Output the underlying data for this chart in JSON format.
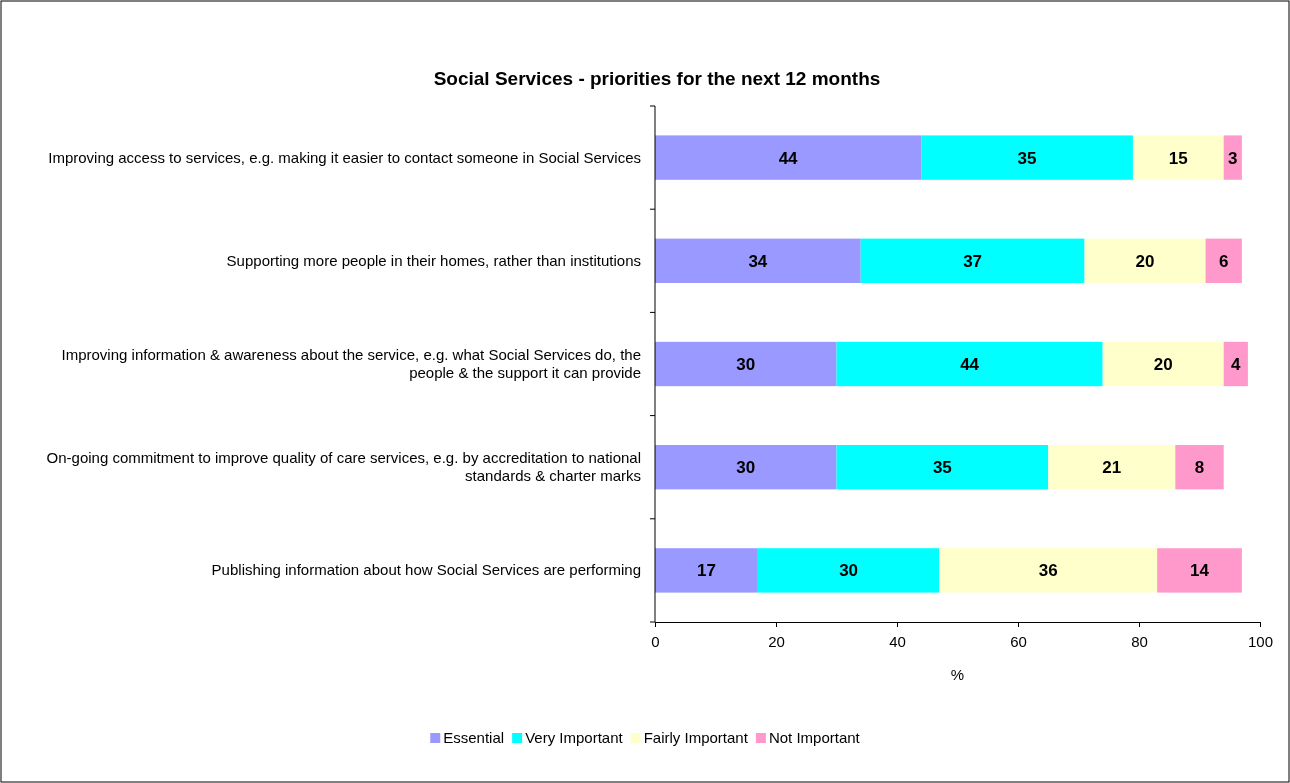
{
  "chart_data": {
    "type": "bar",
    "orientation": "horizontal",
    "stacked": true,
    "title": "Social Services - priorities for the next 12 months",
    "xlabel": "%",
    "categories": [
      "Improving access to services, e.g. making it easier to contact someone in Social Services",
      "Supporting more people in their homes, rather than institutions",
      "Improving information & awareness about the service, e.g. what Social Services do, the people & the support it can provide",
      "On-going commitment to improve quality of care services, e.g. by accreditation to national standards & charter marks",
      "Publishing information about how Social Services are performing"
    ],
    "series": [
      {
        "name": "Essential",
        "color": "#9999ff",
        "values": [
          44,
          34,
          30,
          30,
          17
        ]
      },
      {
        "name": "Very Important",
        "color": "#00ffff",
        "values": [
          35,
          37,
          44,
          35,
          30
        ]
      },
      {
        "name": "Fairly Important",
        "color": "#ffffcc",
        "values": [
          15,
          20,
          20,
          21,
          36
        ]
      },
      {
        "name": "Not Important",
        "color": "#ff99cc",
        "values": [
          3,
          6,
          4,
          8,
          14
        ]
      }
    ],
    "xlim": [
      0,
      100
    ],
    "xticks": [
      0,
      20,
      40,
      60,
      80,
      100
    ],
    "data_labels": true,
    "legend": "bottom",
    "grid": false
  }
}
